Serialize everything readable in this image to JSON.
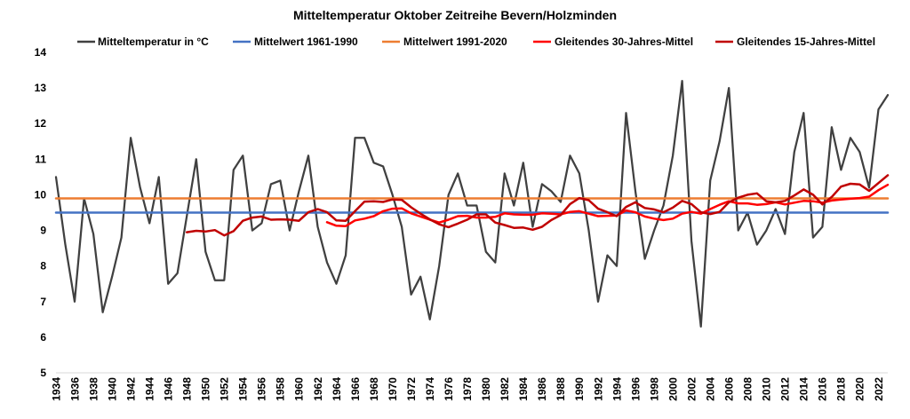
{
  "chart_data": {
    "type": "line",
    "title": "Mitteltemperatur Oktober Zeitreihe Bevern/Holzminden",
    "xlabel": "",
    "ylabel": "",
    "ylim": [
      5,
      14
    ],
    "grid": false,
    "legend_position": "top",
    "y_ticks": [
      5,
      6,
      7,
      8,
      9,
      10,
      11,
      12,
      13,
      14
    ],
    "x_ticks": [
      1934,
      1936,
      1938,
      1940,
      1942,
      1944,
      1946,
      1948,
      1950,
      1952,
      1954,
      1956,
      1958,
      1960,
      1962,
      1964,
      1966,
      1968,
      1970,
      1972,
      1974,
      1976,
      1978,
      1980,
      1982,
      1984,
      1986,
      1988,
      1990,
      1992,
      1994,
      1996,
      1998,
      2000,
      2002,
      2004,
      2006,
      2008,
      2010,
      2012,
      2014,
      2016,
      2018,
      2020,
      2022
    ],
    "x": [
      1934,
      1935,
      1936,
      1937,
      1938,
      1939,
      1940,
      1941,
      1942,
      1943,
      1944,
      1945,
      1946,
      1947,
      1948,
      1949,
      1950,
      1951,
      1952,
      1953,
      1954,
      1955,
      1956,
      1957,
      1958,
      1959,
      1960,
      1961,
      1962,
      1963,
      1964,
      1965,
      1966,
      1967,
      1968,
      1969,
      1970,
      1971,
      1972,
      1973,
      1974,
      1975,
      1976,
      1977,
      1978,
      1979,
      1980,
      1981,
      1982,
      1983,
      1984,
      1985,
      1986,
      1987,
      1988,
      1989,
      1990,
      1991,
      1992,
      1993,
      1994,
      1995,
      1996,
      1997,
      1998,
      1999,
      2000,
      2001,
      2002,
      2003,
      2004,
      2005,
      2006,
      2007,
      2008,
      2009,
      2010,
      2011,
      2012,
      2013,
      2014,
      2015,
      2016,
      2017,
      2018,
      2019,
      2020,
      2021,
      2022,
      2023
    ],
    "series": [
      {
        "name": "Mitteltemperatur in °C",
        "color": "#404040",
        "values": [
          10.5,
          8.6,
          7.0,
          9.9,
          8.9,
          6.7,
          7.7,
          8.8,
          11.6,
          10.2,
          9.2,
          10.5,
          7.5,
          7.8,
          9.4,
          11.0,
          8.4,
          7.6,
          7.6,
          10.7,
          11.1,
          9.0,
          9.2,
          10.3,
          10.4,
          9.0,
          10.1,
          11.1,
          9.1,
          8.1,
          7.5,
          8.3,
          11.6,
          11.6,
          10.9,
          10.8,
          10.0,
          9.1,
          7.2,
          7.7,
          6.5,
          8.0,
          10.0,
          10.6,
          9.7,
          9.7,
          8.4,
          8.1,
          10.6,
          9.7,
          10.9,
          9.1,
          10.3,
          10.1,
          9.8,
          11.1,
          10.6,
          9.0,
          7.0,
          8.3,
          8.0,
          12.3,
          10.1,
          8.2,
          9.0,
          9.7,
          11.1,
          13.2,
          8.7,
          6.3,
          10.4,
          11.5,
          13.0,
          9.0,
          9.5,
          8.6,
          9.0,
          9.6,
          8.9,
          11.2,
          12.3,
          8.8,
          9.1,
          11.9,
          10.7,
          11.6,
          11.2,
          10.2,
          12.4,
          12.8
        ]
      },
      {
        "name": "Mittelwert 1961-1990",
        "color": "#4472C4",
        "constant": 9.5
      },
      {
        "name": "Mittelwert 1991-2020",
        "color": "#ED7D31",
        "constant": 9.9
      },
      {
        "name": "Gleitendes 30-Jahres-Mittel",
        "color": "#FF0000",
        "values": [
          null,
          null,
          null,
          null,
          null,
          null,
          null,
          null,
          null,
          null,
          null,
          null,
          null,
          null,
          null,
          null,
          null,
          null,
          null,
          null,
          null,
          null,
          null,
          null,
          null,
          null,
          null,
          null,
          null,
          9.23,
          9.13,
          9.12,
          9.28,
          9.33,
          9.4,
          9.54,
          9.61,
          9.62,
          9.48,
          9.39,
          9.3,
          9.22,
          9.3,
          9.4,
          9.41,
          9.36,
          9.36,
          9.38,
          9.48,
          9.45,
          9.44,
          9.44,
          9.48,
          9.47,
          9.45,
          9.52,
          9.54,
          9.47,
          9.4,
          9.41,
          9.42,
          9.56,
          9.51,
          9.39,
          9.33,
          9.29,
          9.33,
          9.47,
          9.52,
          9.47,
          9.6,
          9.72,
          9.82,
          9.76,
          9.76,
          9.72,
          9.74,
          9.79,
          9.73,
          9.78,
          9.83,
          9.82,
          9.78,
          9.84,
          9.87,
          9.89,
          9.91,
          9.95,
          10.13,
          10.28
        ]
      },
      {
        "name": "Gleitendes 15-Jahres-Mittel",
        "color": "#C00000",
        "values": [
          null,
          null,
          null,
          null,
          null,
          null,
          null,
          null,
          null,
          null,
          null,
          null,
          null,
          null,
          8.95,
          8.99,
          8.97,
          9.01,
          8.86,
          8.98,
          9.27,
          9.36,
          9.39,
          9.3,
          9.31,
          9.3,
          9.27,
          9.51,
          9.6,
          9.51,
          9.28,
          9.27,
          9.54,
          9.81,
          9.82,
          9.8,
          9.87,
          9.86,
          9.65,
          9.47,
          9.31,
          9.17,
          9.09,
          9.19,
          9.3,
          9.45,
          9.45,
          9.22,
          9.15,
          9.07,
          9.08,
          9.02,
          9.1,
          9.29,
          9.43,
          9.74,
          9.91,
          9.85,
          9.61,
          9.51,
          9.4,
          9.66,
          9.79,
          9.63,
          9.59,
          9.51,
          9.64,
          9.83,
          9.74,
          9.51,
          9.46,
          9.52,
          9.79,
          9.92,
          10.0,
          10.04,
          9.82,
          9.79,
          9.83,
          9.98,
          10.15,
          10.0,
          9.73,
          9.94,
          10.23,
          10.31,
          10.29,
          10.11,
          10.33,
          10.55
        ]
      }
    ]
  }
}
